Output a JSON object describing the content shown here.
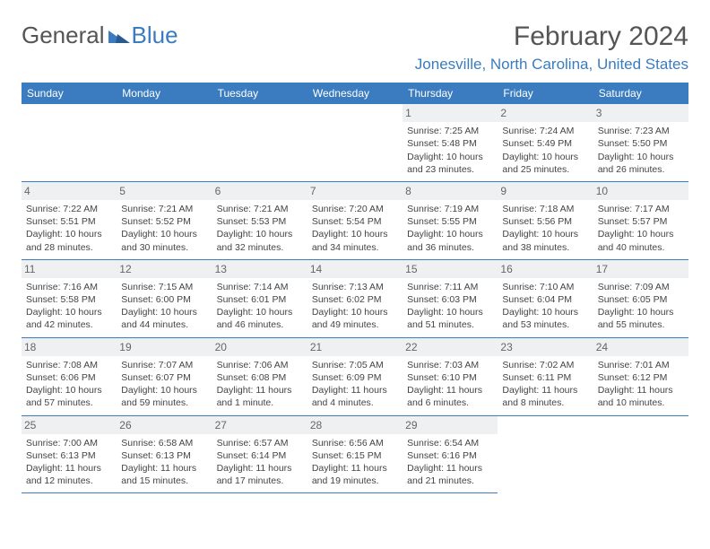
{
  "brand": {
    "left": "General",
    "right": "Blue"
  },
  "title": "February 2024",
  "location": "Jonesville, North Carolina, United States",
  "colors": {
    "accent": "#3a7cbf",
    "header_text": "#ffffff",
    "day_bg": "#eef0f1",
    "text": "#444444",
    "title_text": "#555555",
    "bg": "#ffffff"
  },
  "weekdays": [
    "Sunday",
    "Monday",
    "Tuesday",
    "Wednesday",
    "Thursday",
    "Friday",
    "Saturday"
  ],
  "blank_leading": 4,
  "days": [
    {
      "n": "1",
      "sunrise": "Sunrise: 7:25 AM",
      "sunset": "Sunset: 5:48 PM",
      "day1": "Daylight: 10 hours",
      "day2": "and 23 minutes."
    },
    {
      "n": "2",
      "sunrise": "Sunrise: 7:24 AM",
      "sunset": "Sunset: 5:49 PM",
      "day1": "Daylight: 10 hours",
      "day2": "and 25 minutes."
    },
    {
      "n": "3",
      "sunrise": "Sunrise: 7:23 AM",
      "sunset": "Sunset: 5:50 PM",
      "day1": "Daylight: 10 hours",
      "day2": "and 26 minutes."
    },
    {
      "n": "4",
      "sunrise": "Sunrise: 7:22 AM",
      "sunset": "Sunset: 5:51 PM",
      "day1": "Daylight: 10 hours",
      "day2": "and 28 minutes."
    },
    {
      "n": "5",
      "sunrise": "Sunrise: 7:21 AM",
      "sunset": "Sunset: 5:52 PM",
      "day1": "Daylight: 10 hours",
      "day2": "and 30 minutes."
    },
    {
      "n": "6",
      "sunrise": "Sunrise: 7:21 AM",
      "sunset": "Sunset: 5:53 PM",
      "day1": "Daylight: 10 hours",
      "day2": "and 32 minutes."
    },
    {
      "n": "7",
      "sunrise": "Sunrise: 7:20 AM",
      "sunset": "Sunset: 5:54 PM",
      "day1": "Daylight: 10 hours",
      "day2": "and 34 minutes."
    },
    {
      "n": "8",
      "sunrise": "Sunrise: 7:19 AM",
      "sunset": "Sunset: 5:55 PM",
      "day1": "Daylight: 10 hours",
      "day2": "and 36 minutes."
    },
    {
      "n": "9",
      "sunrise": "Sunrise: 7:18 AM",
      "sunset": "Sunset: 5:56 PM",
      "day1": "Daylight: 10 hours",
      "day2": "and 38 minutes."
    },
    {
      "n": "10",
      "sunrise": "Sunrise: 7:17 AM",
      "sunset": "Sunset: 5:57 PM",
      "day1": "Daylight: 10 hours",
      "day2": "and 40 minutes."
    },
    {
      "n": "11",
      "sunrise": "Sunrise: 7:16 AM",
      "sunset": "Sunset: 5:58 PM",
      "day1": "Daylight: 10 hours",
      "day2": "and 42 minutes."
    },
    {
      "n": "12",
      "sunrise": "Sunrise: 7:15 AM",
      "sunset": "Sunset: 6:00 PM",
      "day1": "Daylight: 10 hours",
      "day2": "and 44 minutes."
    },
    {
      "n": "13",
      "sunrise": "Sunrise: 7:14 AM",
      "sunset": "Sunset: 6:01 PM",
      "day1": "Daylight: 10 hours",
      "day2": "and 46 minutes."
    },
    {
      "n": "14",
      "sunrise": "Sunrise: 7:13 AM",
      "sunset": "Sunset: 6:02 PM",
      "day1": "Daylight: 10 hours",
      "day2": "and 49 minutes."
    },
    {
      "n": "15",
      "sunrise": "Sunrise: 7:11 AM",
      "sunset": "Sunset: 6:03 PM",
      "day1": "Daylight: 10 hours",
      "day2": "and 51 minutes."
    },
    {
      "n": "16",
      "sunrise": "Sunrise: 7:10 AM",
      "sunset": "Sunset: 6:04 PM",
      "day1": "Daylight: 10 hours",
      "day2": "and 53 minutes."
    },
    {
      "n": "17",
      "sunrise": "Sunrise: 7:09 AM",
      "sunset": "Sunset: 6:05 PM",
      "day1": "Daylight: 10 hours",
      "day2": "and 55 minutes."
    },
    {
      "n": "18",
      "sunrise": "Sunrise: 7:08 AM",
      "sunset": "Sunset: 6:06 PM",
      "day1": "Daylight: 10 hours",
      "day2": "and 57 minutes."
    },
    {
      "n": "19",
      "sunrise": "Sunrise: 7:07 AM",
      "sunset": "Sunset: 6:07 PM",
      "day1": "Daylight: 10 hours",
      "day2": "and 59 minutes."
    },
    {
      "n": "20",
      "sunrise": "Sunrise: 7:06 AM",
      "sunset": "Sunset: 6:08 PM",
      "day1": "Daylight: 11 hours",
      "day2": "and 1 minute."
    },
    {
      "n": "21",
      "sunrise": "Sunrise: 7:05 AM",
      "sunset": "Sunset: 6:09 PM",
      "day1": "Daylight: 11 hours",
      "day2": "and 4 minutes."
    },
    {
      "n": "22",
      "sunrise": "Sunrise: 7:03 AM",
      "sunset": "Sunset: 6:10 PM",
      "day1": "Daylight: 11 hours",
      "day2": "and 6 minutes."
    },
    {
      "n": "23",
      "sunrise": "Sunrise: 7:02 AM",
      "sunset": "Sunset: 6:11 PM",
      "day1": "Daylight: 11 hours",
      "day2": "and 8 minutes."
    },
    {
      "n": "24",
      "sunrise": "Sunrise: 7:01 AM",
      "sunset": "Sunset: 6:12 PM",
      "day1": "Daylight: 11 hours",
      "day2": "and 10 minutes."
    },
    {
      "n": "25",
      "sunrise": "Sunrise: 7:00 AM",
      "sunset": "Sunset: 6:13 PM",
      "day1": "Daylight: 11 hours",
      "day2": "and 12 minutes."
    },
    {
      "n": "26",
      "sunrise": "Sunrise: 6:58 AM",
      "sunset": "Sunset: 6:13 PM",
      "day1": "Daylight: 11 hours",
      "day2": "and 15 minutes."
    },
    {
      "n": "27",
      "sunrise": "Sunrise: 6:57 AM",
      "sunset": "Sunset: 6:14 PM",
      "day1": "Daylight: 11 hours",
      "day2": "and 17 minutes."
    },
    {
      "n": "28",
      "sunrise": "Sunrise: 6:56 AM",
      "sunset": "Sunset: 6:15 PM",
      "day1": "Daylight: 11 hours",
      "day2": "and 19 minutes."
    },
    {
      "n": "29",
      "sunrise": "Sunrise: 6:54 AM",
      "sunset": "Sunset: 6:16 PM",
      "day1": "Daylight: 11 hours",
      "day2": "and 21 minutes."
    }
  ]
}
